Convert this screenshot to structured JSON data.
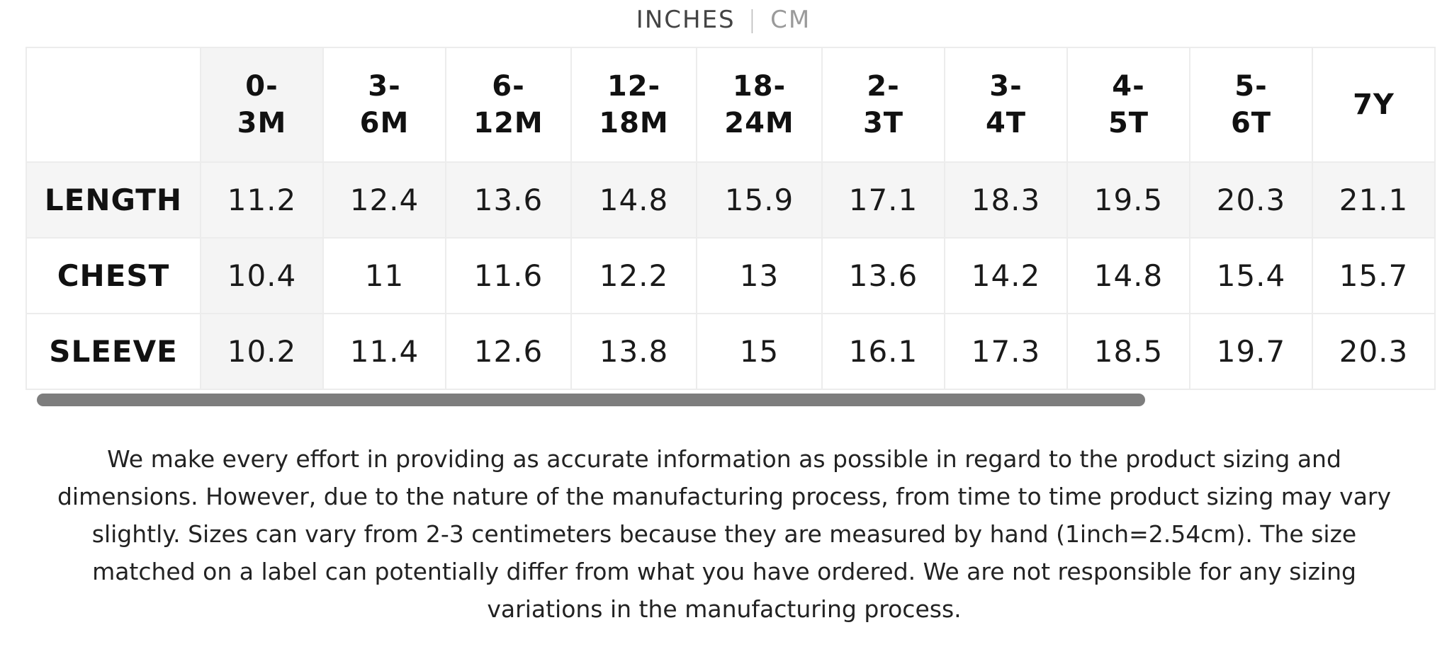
{
  "unit_toggle": {
    "active": "INCHES",
    "separator": "|",
    "inactive": "CM"
  },
  "table": {
    "columns": [
      {
        "line1": "0-",
        "line2": "3M"
      },
      {
        "line1": "3-",
        "line2": "6M"
      },
      {
        "line1": "6-",
        "line2": "12M"
      },
      {
        "line1": "12-",
        "line2": "18M"
      },
      {
        "line1": "18-",
        "line2": "24M"
      },
      {
        "line1": "2-",
        "line2": "3T"
      },
      {
        "line1": "3-",
        "line2": "4T"
      },
      {
        "line1": "4-",
        "line2": "5T"
      },
      {
        "line1": "5-",
        "line2": "6T"
      },
      {
        "line1": "7Y",
        "line2": ""
      }
    ],
    "rows": [
      {
        "label": "LENGTH",
        "values": [
          "11.2",
          "12.4",
          "13.6",
          "14.8",
          "15.9",
          "17.1",
          "18.3",
          "19.5",
          "20.3",
          "21.1"
        ]
      },
      {
        "label": "CHEST",
        "values": [
          "10.4",
          "11",
          "11.6",
          "12.2",
          "13",
          "13.6",
          "14.2",
          "14.8",
          "15.4",
          "15.7"
        ]
      },
      {
        "label": "SLEEVE",
        "values": [
          "10.2",
          "11.4",
          "12.6",
          "13.8",
          "15",
          "16.1",
          "17.3",
          "18.5",
          "19.7",
          "20.3"
        ]
      }
    ]
  },
  "disclaimer": "We make every effort in providing as accurate information as possible in regard to the product sizing and dimensions. However, due to the nature of the manufacturing process, from time to time product sizing may vary slightly. Sizes can vary from 2-3 centimeters because they are measured by hand (1inch=2.54cm). The size matched on a label can potentially differ from what you have ordered. We are not responsible for any sizing variations in the manufacturing process.",
  "colors": {
    "border": "#ececec",
    "shade": "#f5f5f5",
    "scrollbar": "#7d7d7d",
    "inactive_unit": "#9a9a9a"
  }
}
